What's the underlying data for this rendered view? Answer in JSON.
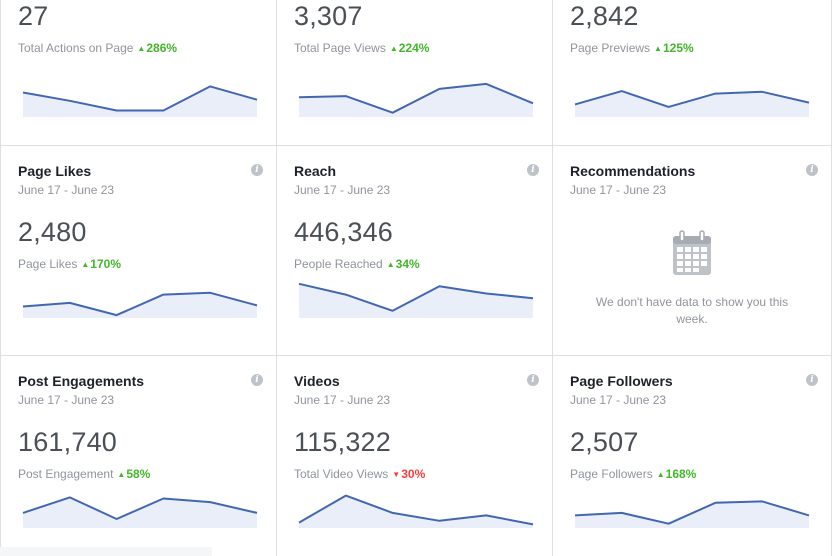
{
  "colors": {
    "line": "#4267b2",
    "fill": "#e9eef9",
    "up": "#42b72a",
    "down": "#fa3e3e"
  },
  "cards": [
    {
      "id": "actions",
      "value": "27",
      "metric": "Total Actions on Page",
      "change": "286%",
      "direction": "up",
      "spark": [
        0.68,
        0.45,
        0.18,
        0.18,
        0.85,
        0.48
      ]
    },
    {
      "id": "views",
      "value": "3,307",
      "metric": "Total Page Views",
      "change": "224%",
      "direction": "up",
      "spark": [
        0.55,
        0.58,
        0.12,
        0.78,
        0.92,
        0.38
      ]
    },
    {
      "id": "previews",
      "value": "2,842",
      "metric": "Page Previews",
      "change": "125%",
      "direction": "up",
      "spark": [
        0.35,
        0.72,
        0.28,
        0.65,
        0.7,
        0.4
      ]
    },
    {
      "id": "likes",
      "title": "Page Likes",
      "date": "June 17 - June 23",
      "value": "2,480",
      "metric": "Page Likes",
      "change": "170%",
      "direction": "up",
      "spark": [
        0.32,
        0.42,
        0.08,
        0.65,
        0.7,
        0.35
      ]
    },
    {
      "id": "reach",
      "title": "Reach",
      "date": "June 17 - June 23",
      "value": "446,346",
      "metric": "People Reached",
      "change": "34%",
      "direction": "up",
      "spark": [
        0.95,
        0.65,
        0.2,
        0.88,
        0.68,
        0.55
      ]
    },
    {
      "id": "recommendations",
      "title": "Recommendations",
      "date": "June 17 - June 23",
      "empty_text": "We don't have data to show you this week."
    },
    {
      "id": "engagements",
      "title": "Post Engagements",
      "date": "June 17 - June 23",
      "value": "161,740",
      "metric": "Post Engagement",
      "change": "58%",
      "direction": "up",
      "spark": [
        0.42,
        0.85,
        0.25,
        0.82,
        0.72,
        0.42
      ]
    },
    {
      "id": "videos",
      "title": "Videos",
      "date": "June 17 - June 23",
      "value": "115,322",
      "metric": "Total Video Views",
      "change": "30%",
      "direction": "down",
      "spark": [
        0.15,
        0.9,
        0.42,
        0.2,
        0.35,
        0.1
      ]
    },
    {
      "id": "followers",
      "title": "Page Followers",
      "date": "June 17 - June 23",
      "value": "2,507",
      "metric": "Page Followers",
      "change": "168%",
      "direction": "up",
      "spark": [
        0.35,
        0.42,
        0.12,
        0.7,
        0.74,
        0.35
      ]
    }
  ]
}
